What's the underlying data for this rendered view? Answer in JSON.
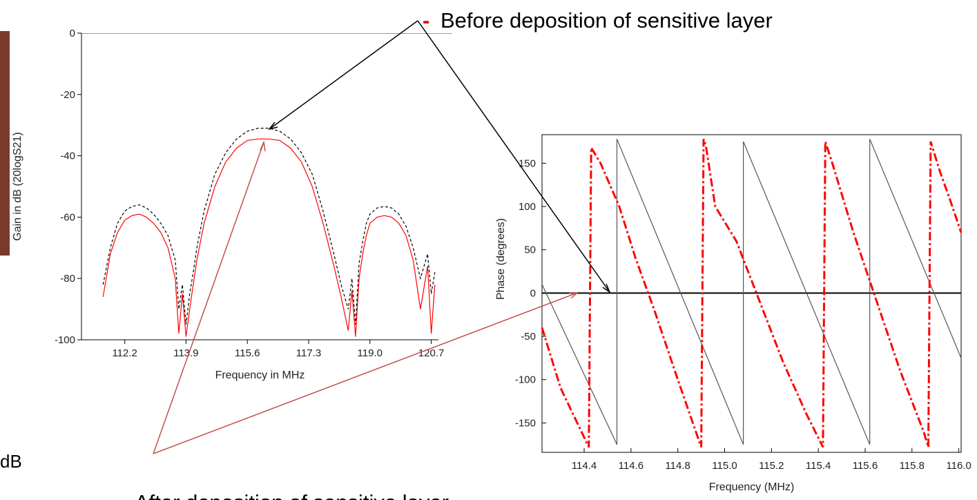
{
  "slide": {
    "before_marker": "-",
    "before_label": "Before deposition of sensitive layer",
    "after_label": "After deposition of sensitive layer",
    "db_label": "dB"
  },
  "chart_data": [
    {
      "type": "line",
      "y_label": "Gain in dB (20logS21)",
      "x_label": "Frequency in MHz",
      "xlim": [
        111.0,
        120.9
      ],
      "ylim": [
        -100,
        0
      ],
      "xticks": [
        112.2,
        113.9,
        115.6,
        117.3,
        {
          "value": 119,
          "label": "119.0"
        },
        120.7
      ],
      "yticks": [
        0,
        -20,
        -40,
        -60,
        -80,
        -100
      ],
      "series": [
        {
          "color": "#000000",
          "style": "dashed",
          "x": [
            111.6,
            111.8,
            112.0,
            112.2,
            112.4,
            112.6,
            112.8,
            113.0,
            113.2,
            113.4,
            113.6,
            113.7,
            113.8,
            113.9,
            114.0,
            114.1,
            114.2,
            114.4,
            114.7,
            115.0,
            115.3,
            115.6,
            115.9,
            116.2,
            116.5,
            116.8,
            117.1,
            117.4,
            117.7,
            118.0,
            118.2,
            118.4,
            118.5,
            118.6,
            118.7,
            118.8,
            118.9,
            119.0,
            119.2,
            119.4,
            119.6,
            119.8,
            120.0,
            120.2,
            120.4,
            120.6,
            120.7,
            120.8
          ],
          "values": [
            -82,
            -70,
            -62,
            -58,
            -56.5,
            -56,
            -57,
            -59,
            -62,
            -66,
            -74,
            -90,
            -82,
            -95,
            -85,
            -78,
            -70,
            -58,
            -46,
            -39,
            -34.5,
            -32,
            -31,
            -31,
            -32,
            -34.5,
            -39,
            -46,
            -58,
            -72,
            -82,
            -90,
            -80,
            -95,
            -75,
            -68,
            -62,
            -59,
            -57,
            -56.5,
            -57,
            -59,
            -63,
            -70,
            -80,
            -72,
            -85,
            -78
          ]
        },
        {
          "color": "#ff0000",
          "style": "solid",
          "x": [
            111.6,
            111.8,
            112.0,
            112.2,
            112.4,
            112.6,
            112.8,
            113.0,
            113.2,
            113.4,
            113.6,
            113.7,
            113.8,
            113.9,
            114.0,
            114.1,
            114.2,
            114.4,
            114.7,
            115.0,
            115.3,
            115.6,
            115.9,
            116.2,
            116.5,
            116.8,
            117.1,
            117.4,
            117.7,
            118.0,
            118.2,
            118.4,
            118.5,
            118.6,
            118.7,
            118.8,
            118.9,
            119.0,
            119.2,
            119.4,
            119.6,
            119.8,
            120.0,
            120.2,
            120.4,
            120.6,
            120.7,
            120.8
          ],
          "values": [
            -86,
            -72,
            -65,
            -61,
            -59.5,
            -59,
            -60,
            -62,
            -65,
            -70,
            -80,
            -98,
            -85,
            -99,
            -90,
            -82,
            -74,
            -62,
            -50,
            -42,
            -37.5,
            -35,
            -34.5,
            -34.5,
            -35,
            -37.5,
            -42,
            -50,
            -62,
            -76,
            -86,
            -97,
            -84,
            -99,
            -80,
            -72,
            -66,
            -62,
            -60,
            -59.5,
            -60,
            -62,
            -66,
            -74,
            -90,
            -76,
            -98,
            -82
          ]
        }
      ]
    },
    {
      "type": "line",
      "y_label": "Phase (degrees)",
      "x_label": "Frequency (MHz)",
      "xlim": [
        114.22,
        116.01
      ],
      "ylim": [
        -184,
        183
      ],
      "xticks": [
        114.4,
        114.6,
        114.8,
        {
          "value": 115,
          "label": "115.0"
        },
        115.2,
        115.4,
        115.6,
        115.8,
        {
          "value": 116,
          "label": "116.0"
        }
      ],
      "yticks": [
        -150,
        -100,
        -50,
        0,
        50,
        100,
        150
      ],
      "zero_line": true,
      "series": [
        {
          "color": "#555555",
          "style": "solid",
          "x": [
            114.22,
            114.54,
            114.54,
            115.08,
            115.08,
            115.62,
            115.62,
            116.01
          ],
          "values": [
            10,
            -175,
            178,
            -175,
            175,
            -175,
            178,
            -75
          ]
        },
        {
          "color": "#ff0000",
          "style": "dashdot",
          "x": [
            114.22,
            114.3,
            114.42,
            114.43,
            114.47,
            114.55,
            114.62,
            114.7,
            114.8,
            114.9,
            114.91,
            114.92,
            114.96,
            115.05,
            115.15,
            115.25,
            115.35,
            115.42,
            115.43,
            115.46,
            115.55,
            115.65,
            115.75,
            115.85,
            115.87,
            115.88,
            115.92,
            115.96,
            116.01
          ],
          "values": [
            -40,
            -110,
            -178,
            168,
            150,
            100,
            40,
            -20,
            -100,
            -178,
            178,
            170,
            100,
            60,
            -10,
            -80,
            -140,
            -178,
            175,
            150,
            70,
            -10,
            -90,
            -160,
            -178,
            175,
            140,
            110,
            70
          ]
        }
      ]
    }
  ]
}
